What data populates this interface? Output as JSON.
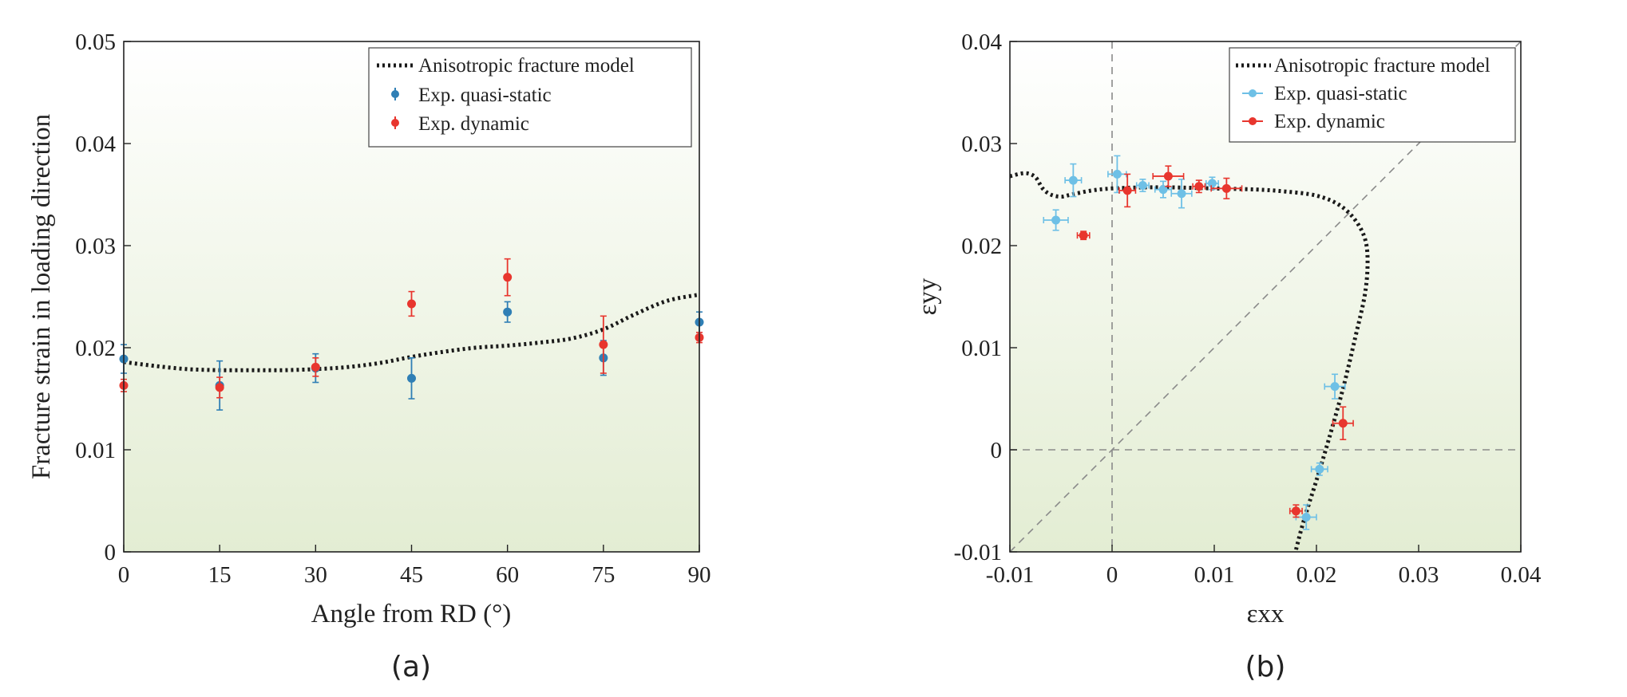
{
  "colors": {
    "quasi_static_a": "#2f7fb5",
    "quasi_static_b": "#6ec0e6",
    "dynamic": "#e8362e",
    "model": "#1a1a1a",
    "background_top": "#ffffff",
    "background_bottom": "#e3edd3"
  },
  "chart_data": [
    {
      "type": "scatter",
      "panel_label": "(a)",
      "xlabel": "Angle from RD (°)",
      "ylabel": "Fracture strain in loading direction",
      "xlim": [
        0,
        90
      ],
      "ylim": [
        0,
        0.05
      ],
      "x_ticks": [
        0,
        15,
        30,
        45,
        60,
        75,
        90
      ],
      "x_tick_labels": [
        "0",
        "15",
        "30",
        "45",
        "60",
        "75",
        "90"
      ],
      "y_ticks": [
        0,
        0.01,
        0.02,
        0.03,
        0.04,
        0.05
      ],
      "y_tick_labels": [
        "0",
        "0.01",
        "0.02",
        "0.03",
        "0.04",
        "0.05"
      ],
      "grid": false,
      "legend_position": "top-right",
      "legend": [
        "Anisotropic fracture model",
        "Exp. quasi-static",
        "Exp. dynamic"
      ],
      "series": [
        {
          "name": "Anisotropic fracture model",
          "style": "dotted-line",
          "x": [
            0,
            5,
            10,
            15,
            20,
            25,
            30,
            35,
            40,
            45,
            50,
            55,
            60,
            65,
            70,
            75,
            80,
            85,
            90
          ],
          "y": [
            0.0186,
            0.0182,
            0.0179,
            0.0178,
            0.0178,
            0.0178,
            0.0179,
            0.0181,
            0.0185,
            0.0191,
            0.0196,
            0.02,
            0.0202,
            0.0205,
            0.0209,
            0.0218,
            0.0233,
            0.0246,
            0.0252
          ]
        },
        {
          "name": "Exp. quasi-static",
          "style": "markers-errorbars",
          "x": [
            0,
            15,
            30,
            45,
            60,
            75,
            90
          ],
          "y": [
            0.0189,
            0.0163,
            0.018,
            0.017,
            0.0235,
            0.019,
            0.0225
          ],
          "yerr": [
            0.0014,
            0.0024,
            0.0014,
            0.002,
            0.001,
            0.0017,
            0.001
          ]
        },
        {
          "name": "Exp. dynamic",
          "style": "markers-errorbars",
          "x": [
            0,
            15,
            30,
            45,
            60,
            75,
            90
          ],
          "y": [
            0.0163,
            0.0161,
            0.0181,
            0.0243,
            0.0269,
            0.0203,
            0.021
          ],
          "yerr": [
            0.0006,
            0.001,
            0.0009,
            0.0012,
            0.0018,
            0.0028,
            0.0005
          ]
        }
      ]
    },
    {
      "type": "scatter",
      "panel_label": "(b)",
      "xlabel": "εxx",
      "ylabel": "εyy",
      "xlim": [
        -0.01,
        0.04
      ],
      "ylim": [
        -0.01,
        0.04
      ],
      "x_ticks": [
        -0.01,
        0,
        0.01,
        0.02,
        0.03,
        0.04
      ],
      "x_tick_labels": [
        "-0.01",
        "0",
        "0.01",
        "0.02",
        "0.03",
        "0.04"
      ],
      "y_ticks": [
        -0.01,
        0,
        0.01,
        0.02,
        0.03,
        0.04
      ],
      "y_tick_labels": [
        "-0.01",
        "0",
        "0.01",
        "0.02",
        "0.03",
        "0.04"
      ],
      "grid": false,
      "reference_lines": [
        "x=0",
        "y=0",
        "y=x"
      ],
      "legend_position": "top-right",
      "legend": [
        "Anisotropic fracture model",
        "Exp. quasi-static",
        "Exp. dynamic"
      ],
      "series": [
        {
          "name": "Anisotropic fracture model",
          "style": "dotted-line",
          "x": [
            -0.01,
            -0.0085,
            -0.0075,
            -0.0068,
            -0.006,
            -0.005,
            -0.004,
            -0.002,
            0.0,
            0.003,
            0.006,
            0.01,
            0.014,
            0.017,
            0.02,
            0.0222,
            0.0238,
            0.0248,
            0.025,
            0.0247,
            0.0238,
            0.0226,
            0.0212,
            0.02,
            0.0192,
            0.0186,
            0.0182,
            0.018
          ],
          "y": [
            0.0268,
            0.0271,
            0.0267,
            0.0256,
            0.025,
            0.0248,
            0.025,
            0.0254,
            0.0256,
            0.0257,
            0.0257,
            0.0256,
            0.0255,
            0.0253,
            0.0249,
            0.024,
            0.0225,
            0.0205,
            0.018,
            0.015,
            0.011,
            0.006,
            0.001,
            -0.003,
            -0.0055,
            -0.0075,
            -0.009,
            -0.0098
          ]
        },
        {
          "name": "Exp. quasi-static",
          "style": "markers-errorbars-xy",
          "x": [
            -0.0055,
            -0.0038,
            0.0005,
            0.003,
            0.005,
            0.0068,
            0.0098,
            0.0218,
            0.0203,
            0.019
          ],
          "y": [
            0.0225,
            0.0264,
            0.027,
            0.0259,
            0.0255,
            0.0251,
            0.0261,
            0.0062,
            -0.0019,
            -0.0066
          ],
          "xerr": [
            0.0012,
            0.0008,
            0.0009,
            0.0006,
            0.0008,
            0.001,
            0.0006,
            0.001,
            0.0008,
            0.001
          ],
          "yerr": [
            0.001,
            0.0016,
            0.0018,
            0.0006,
            0.0008,
            0.0014,
            0.0006,
            0.0012,
            0.0006,
            0.0012
          ]
        },
        {
          "name": "Exp. dynamic",
          "style": "markers-errorbars-xy",
          "x": [
            -0.0028,
            0.0015,
            0.0055,
            0.0085,
            0.0112,
            0.0226,
            0.018
          ],
          "y": [
            0.021,
            0.0254,
            0.0268,
            0.0258,
            0.0256,
            0.0026,
            -0.006
          ],
          "xerr": [
            0.0006,
            0.0008,
            0.0015,
            0.0006,
            0.0015,
            0.001,
            0.0006
          ],
          "yerr": [
            0.0004,
            0.0016,
            0.001,
            0.0006,
            0.001,
            0.0016,
            0.0006
          ]
        }
      ]
    }
  ]
}
